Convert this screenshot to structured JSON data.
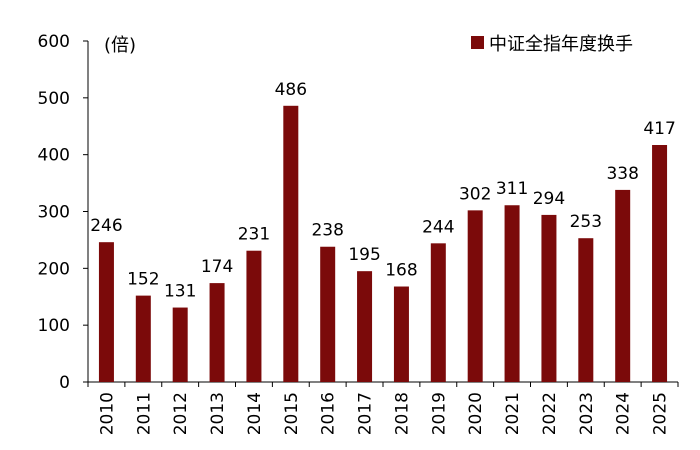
{
  "chart_data": {
    "type": "bar",
    "categories": [
      "2010",
      "2011",
      "2012",
      "2013",
      "2014",
      "2015",
      "2016",
      "2017",
      "2018",
      "2019",
      "2020",
      "2021",
      "2022",
      "2023",
      "2024",
      "2025"
    ],
    "series": [
      {
        "name": "中证全指年度换手",
        "values": [
          246,
          152,
          131,
          174,
          231,
          486,
          238,
          195,
          168,
          244,
          302,
          311,
          294,
          253,
          338,
          417
        ],
        "color": "#7b0a0a"
      }
    ],
    "ylabel": "(倍)",
    "ylim": [
      0,
      600
    ],
    "yticks": [
      "0",
      "100",
      "200",
      "300",
      "400",
      "500",
      "600"
    ],
    "grid": false,
    "legend_position": "top-right"
  }
}
